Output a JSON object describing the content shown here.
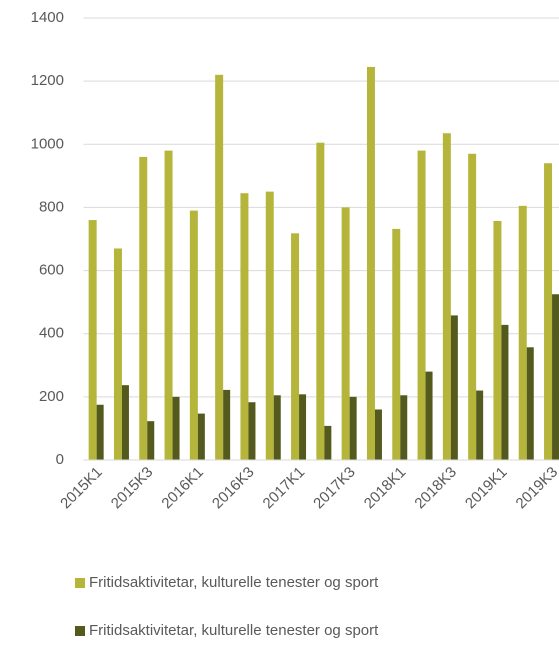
{
  "chart_data": {
    "type": "bar",
    "categories": [
      "2015K1",
      null,
      "2015K3",
      null,
      "2016K1",
      null,
      "2016K3",
      null,
      "2017K1",
      null,
      "2017K3",
      null,
      "2018K1",
      null,
      "2018K3",
      null,
      "2019K1",
      null,
      "2019K3"
    ],
    "series": [
      {
        "name": "Fritidsaktivitetar, kulturelle tenester og sport",
        "color": "#b5b53c",
        "values": [
          760,
          670,
          960,
          980,
          790,
          1220,
          845,
          850,
          718,
          1005,
          800,
          1245,
          732,
          980,
          1035,
          970,
          757,
          805,
          940
        ]
      },
      {
        "name": "Fritidsaktivitetar, kulturelle tenester og sport",
        "color": "#545a1e",
        "values": [
          175,
          237,
          123,
          200,
          147,
          222,
          183,
          205,
          208,
          108,
          200,
          160,
          205,
          280,
          458,
          220,
          428,
          357,
          525
        ]
      }
    ],
    "ylim": [
      0,
      1400
    ],
    "yticks": [
      0,
      200,
      400,
      600,
      800,
      1000,
      1200,
      1400
    ],
    "grid": true,
    "legend": "bottom"
  }
}
